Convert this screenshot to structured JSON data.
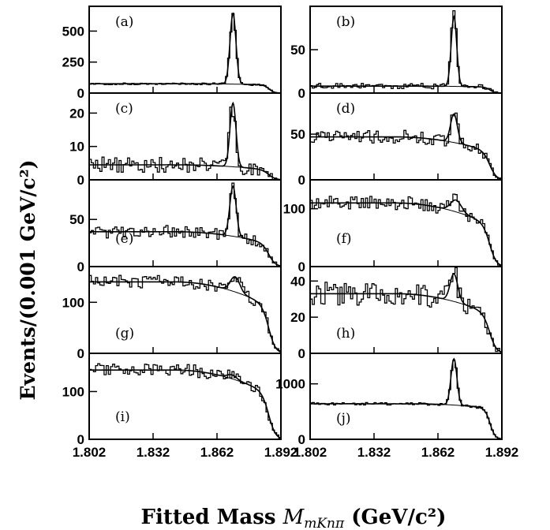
{
  "chart_data": [
    {
      "type": "histogram",
      "panel": "(a)",
      "y_ticks": [
        "0",
        "250",
        "500"
      ],
      "ylim": [
        0,
        700
      ],
      "bg": 75,
      "peak": 640,
      "peak_x": 1.8695,
      "sigma": 0.0014,
      "tail": "mild"
    },
    {
      "type": "histogram",
      "panel": "(b)",
      "y_ticks": [
        "0",
        "50"
      ],
      "ylim": [
        0,
        100
      ],
      "bg": 8,
      "peak": 88,
      "peak_x": 1.8695,
      "sigma": 0.0013,
      "tail": "mild"
    },
    {
      "type": "histogram",
      "panel": "(c)",
      "y_ticks": [
        "0",
        "10",
        "20"
      ],
      "ylim": [
        0,
        26
      ],
      "bg": 4.5,
      "peak": 23,
      "peak_x": 1.8695,
      "sigma": 0.0014,
      "tail": "strong"
    },
    {
      "type": "histogram",
      "panel": "(d)",
      "y_ticks": [
        "0",
        "50"
      ],
      "ylim": [
        0,
        95
      ],
      "bg": 47,
      "peak": 72,
      "peak_x": 1.8695,
      "sigma": 0.0016,
      "tail": "strong"
    },
    {
      "type": "histogram",
      "panel": "(e)",
      "y_ticks": [
        "0",
        "50"
      ],
      "ylim": [
        0,
        92
      ],
      "bg": 37,
      "peak": 85,
      "peak_x": 1.8695,
      "sigma": 0.0015,
      "tail": "strong"
    },
    {
      "type": "histogram",
      "panel": "(f)",
      "y_ticks": [
        "0",
        "100"
      ],
      "ylim": [
        0,
        150
      ],
      "bg": 110,
      "peak": 115,
      "peak_x": 1.8705,
      "sigma": 0.0025,
      "tail": "strong"
    },
    {
      "type": "histogram",
      "panel": "(g)",
      "y_ticks": [
        "0",
        "100"
      ],
      "ylim": [
        0,
        170
      ],
      "bg": 140,
      "peak": 150,
      "peak_x": 1.8705,
      "sigma": 0.0022,
      "tail": "strong"
    },
    {
      "type": "histogram",
      "panel": "(h)",
      "y_ticks": [
        "0",
        "20",
        "40"
      ],
      "ylim": [
        0,
        48
      ],
      "bg": 33,
      "peak": 44,
      "peak_x": 1.8695,
      "sigma": 0.0018,
      "tail": "strong"
    },
    {
      "type": "histogram",
      "panel": "(i)",
      "y_ticks": [
        "0",
        "100"
      ],
      "ylim": [
        0,
        180
      ],
      "bg": 145,
      "peak": 135,
      "peak_x": 1.869,
      "sigma": 0.0022,
      "tail": "strong"
    },
    {
      "type": "histogram",
      "panel": "(j)",
      "y_ticks": [
        "0",
        "1000"
      ],
      "ylim": [
        0,
        1550
      ],
      "bg": 640,
      "peak": 1450,
      "peak_x": 1.8695,
      "sigma": 0.0014,
      "tail": "mild"
    }
  ],
  "x_ticks": [
    "1.802",
    "1.832",
    "1.862",
    "1.892"
  ],
  "x_range": [
    1.802,
    1.892
  ],
  "y_axis_label": "Events/(0.001 GeV/c²)",
  "x_axis_label": {
    "prefix": "Fitted Mass ",
    "symbol": "M",
    "sub": "mKnπ",
    "suffix": " (GeV/c²)"
  }
}
